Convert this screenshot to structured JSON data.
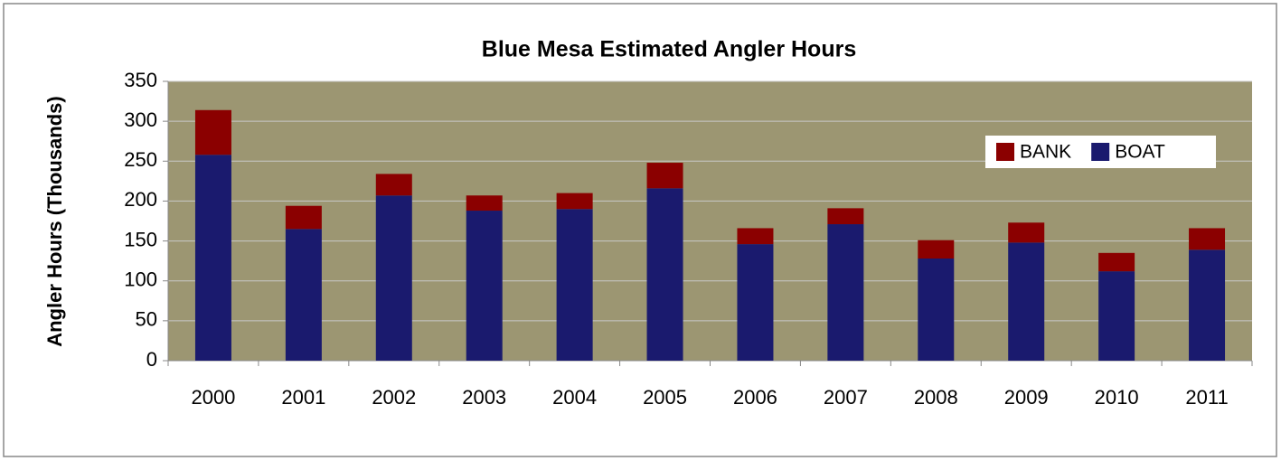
{
  "chart_data": {
    "type": "stacked_bar",
    "title": "Blue Mesa Estimated Angler Hours",
    "y_label": "Angler Hours (Thousands)",
    "categories": [
      "2000",
      "2001",
      "2002",
      "2003",
      "2004",
      "2005",
      "2006",
      "2007",
      "2008",
      "2009",
      "2010",
      "2011"
    ],
    "series": [
      {
        "name": "BOAT",
        "color": "#1a1a6e",
        "values": [
          258,
          165,
          207,
          188,
          190,
          216,
          146,
          171,
          128,
          148,
          112,
          139
        ]
      },
      {
        "name": "BANK",
        "color": "#8b0000",
        "values": [
          56,
          29,
          27,
          19,
          20,
          32,
          20,
          20,
          23,
          25,
          23,
          27
        ]
      }
    ],
    "ylim": [
      0,
      350
    ],
    "yticks": [
      0,
      50,
      100,
      150,
      200,
      250,
      300,
      350
    ],
    "grid": true,
    "legend": "upper right",
    "plot_background": "#9c9672"
  }
}
